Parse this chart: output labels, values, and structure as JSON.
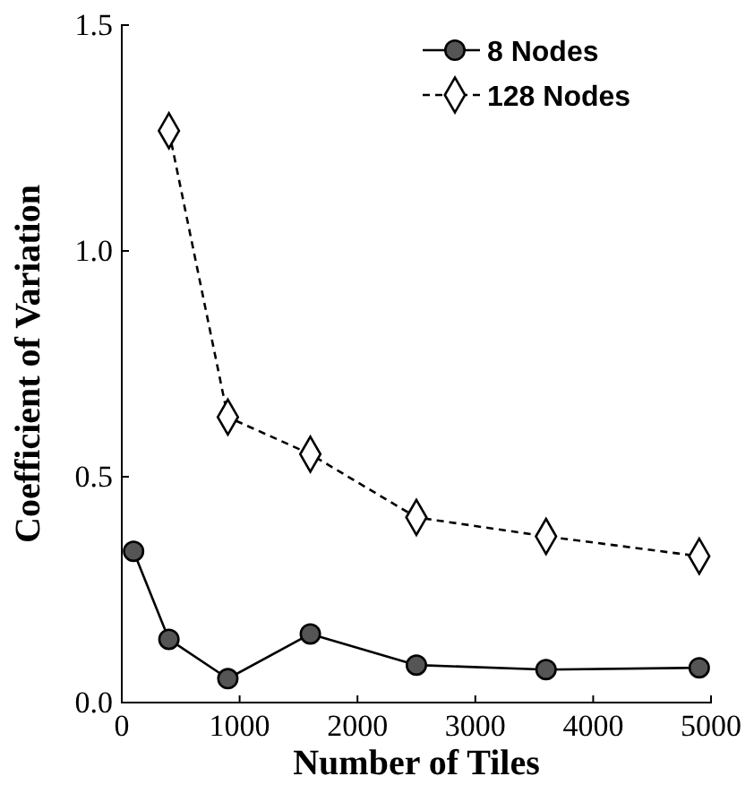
{
  "chart_data": {
    "type": "line",
    "xlabel": "Number of Tiles",
    "ylabel": "Coefficient of Variation",
    "xlim": [
      0,
      5000
    ],
    "xticks": [
      0,
      1000,
      2000,
      3000,
      4000,
      5000
    ],
    "ylim": [
      0,
      1.5
    ],
    "yticks": [
      {
        "value": 0,
        "label": "0.0"
      },
      {
        "value": 0.5,
        "label": "0.5"
      },
      {
        "value": 1,
        "label": "1.0"
      },
      {
        "value": 1.5,
        "label": "1.5"
      }
    ],
    "legend": "top right",
    "grid": false,
    "series": [
      {
        "name": "8 Nodes",
        "color": "#000000",
        "marker": "circle",
        "line_style": "solid",
        "x": [
          100,
          400,
          900,
          1600,
          2500,
          3600,
          4900
        ],
        "values": [
          0.335,
          0.14,
          0.053,
          0.152,
          0.083,
          0.073,
          0.077
        ]
      },
      {
        "name": "128 Nodes",
        "color": "#000000",
        "marker": "diamond",
        "line_style": "dashed",
        "x": [
          400,
          900,
          1600,
          2500,
          3600,
          4900
        ],
        "values": [
          1.266,
          0.632,
          0.55,
          0.41,
          0.368,
          0.324
        ]
      }
    ]
  }
}
